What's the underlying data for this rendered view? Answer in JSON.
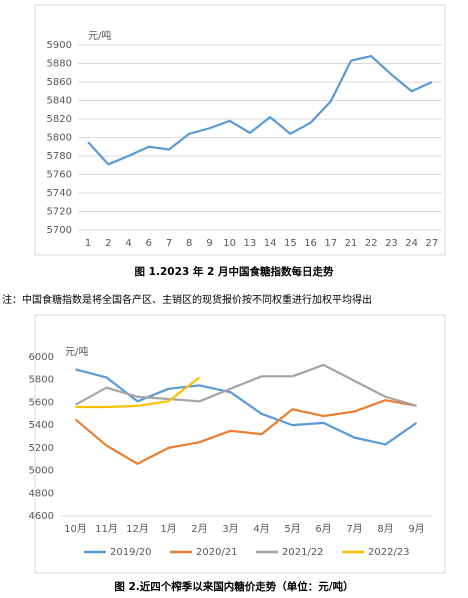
{
  "chart_data": [
    {
      "type": "line",
      "y_label": "元/吨",
      "categories": [
        "1",
        "2",
        "4",
        "6",
        "7",
        "8",
        "9",
        "10",
        "13",
        "14",
        "15",
        "16",
        "17",
        "21",
        "22",
        "23",
        "24",
        "27"
      ],
      "series": [
        {
          "name": null,
          "color": "#5b9bd5",
          "values": [
            5795,
            5771,
            5780,
            5790,
            5787,
            5804,
            5810,
            5818,
            5805,
            5822,
            5804,
            5816,
            5839,
            5883,
            5888,
            5868,
            5850,
            5860
          ]
        }
      ],
      "ylim": [
        5700,
        5900
      ],
      "yticks": [
        5700,
        5720,
        5740,
        5760,
        5780,
        5800,
        5820,
        5840,
        5860,
        5880,
        5900
      ],
      "grid": true,
      "legend": false,
      "caption": "图 1.2023 年 2 月中国食糖指数每日走势",
      "note": "注：中国食糖指数是将全国各产区、主销区的现货报价按不同权重进行加权平均得出"
    },
    {
      "type": "line",
      "y_label": "元/吨",
      "categories": [
        "10月",
        "11月",
        "12月",
        "1月",
        "2月",
        "3月",
        "4月",
        "5月",
        "6月",
        "7月",
        "8月",
        "9月"
      ],
      "series": [
        {
          "name": "2019/20",
          "color": "#5b9bd5",
          "values": [
            5890,
            5820,
            5610,
            5720,
            5750,
            5690,
            5500,
            5400,
            5420,
            5290,
            5230,
            5420
          ]
        },
        {
          "name": "2020/21",
          "color": "#ed7d31",
          "values": [
            5450,
            5220,
            5060,
            5200,
            5250,
            5350,
            5320,
            5540,
            5480,
            5520,
            5620,
            5570
          ]
        },
        {
          "name": "2021/22",
          "color": "#a5a5a5",
          "values": [
            5580,
            5730,
            5650,
            5630,
            5610,
            5720,
            5830,
            5830,
            5930,
            5790,
            5650,
            5570
          ]
        },
        {
          "name": "2022/23",
          "color": "#ffc000",
          "values": [
            5560,
            5560,
            5570,
            5610,
            5820,
            null,
            null,
            null,
            null,
            null,
            null,
            null
          ]
        }
      ],
      "ylim": [
        4600,
        6000
      ],
      "yticks": [
        4600,
        4800,
        5000,
        5200,
        5400,
        5600,
        5800,
        6000
      ],
      "grid": false,
      "legend": "bottom",
      "caption": "图 2.近四个榨季以来国内糖价走势（单位：元/吨）"
    }
  ]
}
